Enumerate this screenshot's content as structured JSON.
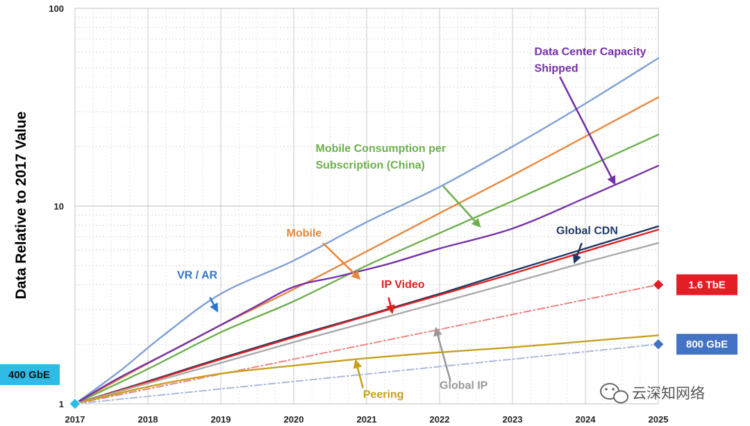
{
  "chart_data": {
    "type": "line",
    "title": "",
    "xlabel": "",
    "ylabel": "Data Relative to 2017 Value",
    "yscale": "log",
    "ylim": [
      1,
      100
    ],
    "xlim": [
      2017,
      2025
    ],
    "grid": true,
    "x_ticks": [
      "2017",
      "2018",
      "2019",
      "2020",
      "2021",
      "2022",
      "2023",
      "2024",
      "2025"
    ],
    "y_ticks": [
      {
        "value": 1,
        "label": "1"
      },
      {
        "value": 10,
        "label": "10"
      },
      {
        "value": 100,
        "label": "100"
      }
    ],
    "series": [
      {
        "key": "vrar",
        "color": "#7F9FD6",
        "dashed": false,
        "points": [
          [
            2017,
            1
          ],
          [
            2017.6,
            1.45
          ],
          [
            2018.2,
            2.2
          ],
          [
            2019,
            3.6
          ],
          [
            2020,
            5.3
          ],
          [
            2021,
            8.3
          ],
          [
            2022,
            12.5
          ],
          [
            2023,
            20
          ],
          [
            2024,
            33
          ],
          [
            2025,
            56
          ]
        ]
      },
      {
        "key": "mobile",
        "color": "#E8873C",
        "dashed": false,
        "points": [
          [
            2017,
            1
          ],
          [
            2018,
            1.6
          ],
          [
            2019,
            2.5
          ],
          [
            2020,
            3.8
          ],
          [
            2021,
            5.9
          ],
          [
            2022,
            9.2
          ],
          [
            2023,
            14.3
          ],
          [
            2024,
            22.5
          ],
          [
            2025,
            35.5
          ]
        ]
      },
      {
        "key": "mobile_china",
        "color": "#6DAF4C",
        "dashed": false,
        "points": [
          [
            2017,
            1
          ],
          [
            2018,
            1.5
          ],
          [
            2019,
            2.3
          ],
          [
            2020,
            3.3
          ],
          [
            2021,
            5.0
          ],
          [
            2022,
            7.3
          ],
          [
            2023,
            10.6
          ],
          [
            2024,
            15.6
          ],
          [
            2025,
            23
          ]
        ]
      },
      {
        "key": "dc_capacity",
        "color": "#7530A8",
        "dashed": false,
        "points": [
          [
            2017,
            1
          ],
          [
            2017.6,
            1.35
          ],
          [
            2018.5,
            2.0
          ],
          [
            2019.4,
            3.0
          ],
          [
            2020,
            3.9
          ],
          [
            2020.6,
            4.4
          ],
          [
            2021.3,
            5.1
          ],
          [
            2022,
            6.1
          ],
          [
            2023,
            7.7
          ],
          [
            2024,
            11
          ],
          [
            2025,
            16
          ]
        ]
      },
      {
        "key": "global_cdn",
        "color": "#1F3864",
        "dashed": false,
        "points": [
          [
            2017,
            1
          ],
          [
            2018,
            1.3
          ],
          [
            2019,
            1.7
          ],
          [
            2020,
            2.2
          ],
          [
            2021,
            2.8
          ],
          [
            2022,
            3.6
          ],
          [
            2023,
            4.7
          ],
          [
            2024,
            6.1
          ],
          [
            2025,
            7.9
          ]
        ]
      },
      {
        "key": "ip_video",
        "color": "#E02020",
        "dashed": false,
        "points": [
          [
            2017,
            1
          ],
          [
            2018,
            1.29
          ],
          [
            2019,
            1.68
          ],
          [
            2020,
            2.17
          ],
          [
            2021,
            2.78
          ],
          [
            2022,
            3.55
          ],
          [
            2023,
            4.55
          ],
          [
            2024,
            5.9
          ],
          [
            2025,
            7.6
          ]
        ]
      },
      {
        "key": "global_ip",
        "color": "#AAAAAA",
        "dashed": false,
        "points": [
          [
            2017,
            1
          ],
          [
            2018,
            1.27
          ],
          [
            2019,
            1.61
          ],
          [
            2020,
            2.05
          ],
          [
            2021,
            2.58
          ],
          [
            2022,
            3.25
          ],
          [
            2023,
            4.1
          ],
          [
            2024,
            5.2
          ],
          [
            2025,
            6.5
          ]
        ]
      },
      {
        "key": "tbe_trend",
        "color": "#F08080",
        "dashed": true,
        "points": [
          [
            2017,
            1
          ],
          [
            2025,
            4.0
          ]
        ]
      },
      {
        "key": "peering",
        "color": "#C8A020",
        "dashed": false,
        "points": [
          [
            2017,
            1
          ],
          [
            2018,
            1.22
          ],
          [
            2019,
            1.42
          ],
          [
            2020,
            1.56
          ],
          [
            2021,
            1.7
          ],
          [
            2022,
            1.82
          ],
          [
            2023,
            1.93
          ],
          [
            2024,
            2.07
          ],
          [
            2025,
            2.22
          ]
        ]
      },
      {
        "key": "gbe_trend",
        "color": "#A9B8DC",
        "dashed": true,
        "points": [
          [
            2017,
            1
          ],
          [
            2025,
            2.0
          ]
        ]
      }
    ],
    "annotations": [
      {
        "lines": [
          "Data Center Capacity",
          "Shipped"
        ],
        "color": "#7530A8",
        "x": 2023.3,
        "y": 58,
        "align": "start",
        "arrow_from": [
          2023.65,
          45
        ],
        "arrow_to": [
          2024.4,
          13
        ]
      },
      {
        "lines": [
          "Mobile Consumption per",
          "Subscription (China)"
        ],
        "color": "#6DAF4C",
        "x": 2020.3,
        "y": 18.8,
        "align": "start",
        "arrow_from": [
          2022.05,
          12.6
        ],
        "arrow_to": [
          2022.55,
          7.9
        ]
      },
      {
        "lines": [
          "Mobile"
        ],
        "color": "#E8873C",
        "x": 2019.9,
        "y": 7.0,
        "align": "start",
        "arrow_from": [
          2020.4,
          6.5
        ],
        "arrow_to": [
          2020.9,
          4.3
        ]
      },
      {
        "lines": [
          "VR / AR"
        ],
        "color": "#2E75C8",
        "x": 2018.4,
        "y": 4.3,
        "align": "start",
        "arrow_from": [
          2018.85,
          3.45
        ],
        "arrow_to": [
          2018.95,
          2.95
        ]
      },
      {
        "lines": [
          "Global CDN"
        ],
        "color": "#1F3864",
        "x": 2023.6,
        "y": 7.2,
        "align": "start",
        "arrow_from": [
          2023.95,
          6.5
        ],
        "arrow_to": [
          2023.85,
          5.2
        ]
      },
      {
        "lines": [
          "IP Video"
        ],
        "color": "#E02020",
        "x": 2021.2,
        "y": 3.85,
        "align": "start",
        "arrow_from": [
          2021.3,
          3.45
        ],
        "arrow_to": [
          2021.35,
          2.9
        ]
      },
      {
        "lines": [
          "Global IP"
        ],
        "color": "#999999",
        "x": 2022,
        "y": 1.19,
        "align": "start",
        "arrow_from": [
          2022.15,
          1.3
        ],
        "arrow_to": [
          2021.95,
          2.4
        ]
      },
      {
        "lines": [
          "Peering"
        ],
        "color": "#C8A020",
        "x": 2020.95,
        "y": 1.07,
        "align": "start",
        "arrow_from": [
          2020.95,
          1.2
        ],
        "arrow_to": [
          2020.85,
          1.65
        ]
      }
    ],
    "markers": [
      {
        "label": "1.6 TbE",
        "x": 2025,
        "y": 4.0,
        "color": "#E41E26",
        "box_fill": "#E41E26",
        "text_color": "#FFFFFF",
        "side": "right"
      },
      {
        "label": "800 GbE",
        "x": 2025,
        "y": 2.0,
        "color": "#4472C4",
        "box_fill": "#4472C4",
        "text_color": "#FFFFFF",
        "side": "right"
      },
      {
        "label": "400 GbE",
        "x": 2017,
        "y": 1.0,
        "color": "#2EBBE6",
        "box_fill": "#2EBBE6",
        "text_color": "#111111",
        "side": "above-left"
      }
    ]
  },
  "watermark": {
    "text": "云深知网络",
    "icon": "wechat-icon"
  }
}
